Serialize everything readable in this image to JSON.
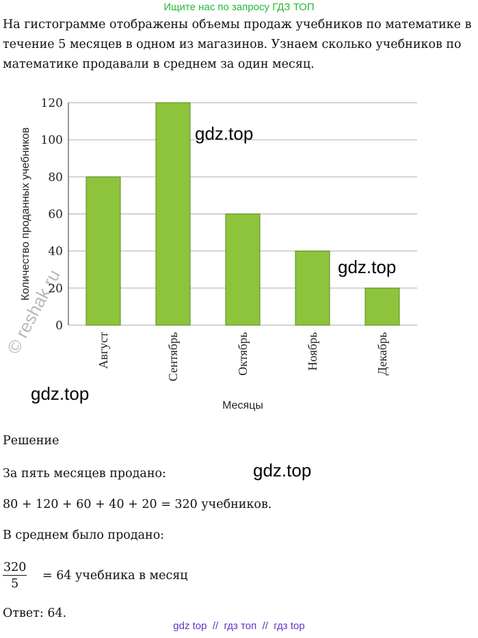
{
  "banner": "Ищите нас по запросу ГДЗ ТОП",
  "problem_text": "На гистограмме отображены объемы продаж учебников по математике в течение 5 месяцев в одном из магазинов. Узнаем сколько учебников по математике продавали в среднем за один месяц.",
  "watermarks": {
    "w1": "gdz.top",
    "w2": "gdz.top",
    "w3": "gdz.top",
    "w4": "gdz.top",
    "reshak": "reshak.ru"
  },
  "colors": {
    "bar": "#8dc43b",
    "bar_edge": "#5a8a1f",
    "grid": "#b8b8b8",
    "banner": "#27b635",
    "links": "#6a2fc4"
  },
  "chart_data": {
    "type": "bar",
    "categories": [
      "Август",
      "Сентябрь",
      "Октябрь",
      "Ноябрь",
      "Декабрь"
    ],
    "values": [
      80,
      120,
      60,
      40,
      20
    ],
    "title": "",
    "xlabel": "Месяцы",
    "ylabel": "Количество проданных учебников",
    "ylim": [
      0,
      120
    ],
    "yticks": [
      0,
      20,
      40,
      60,
      80,
      100,
      120
    ],
    "grid": true
  },
  "solution": {
    "heading": "Решение",
    "line1": "За пять месяцев продано:",
    "line2": "80 + 120 + 60 + 40 + 20 = 320 учебников.",
    "line3": "В среднем было продано:",
    "frac_num": "320",
    "frac_den": "5",
    "frac_rest": "= 64 учебника в месяц",
    "answer": "Ответ: 64."
  },
  "footer_links": "gdz top  //  гдз топ  //  гдз top"
}
